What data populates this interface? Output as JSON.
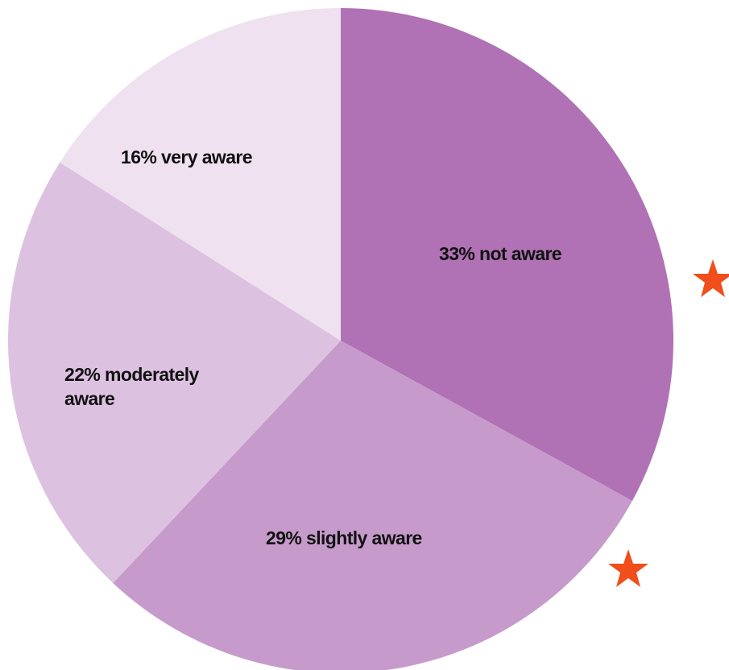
{
  "chart_data": {
    "type": "pie",
    "values": [
      33,
      29,
      22,
      16
    ],
    "value_labels": [
      "33% not aware",
      "29% slightly aware",
      "22% moderately aware",
      "16% very aware"
    ],
    "colors": [
      "#b072b5",
      "#c69bcb",
      "#dcc2e0",
      "#efe1f0"
    ]
  }
}
